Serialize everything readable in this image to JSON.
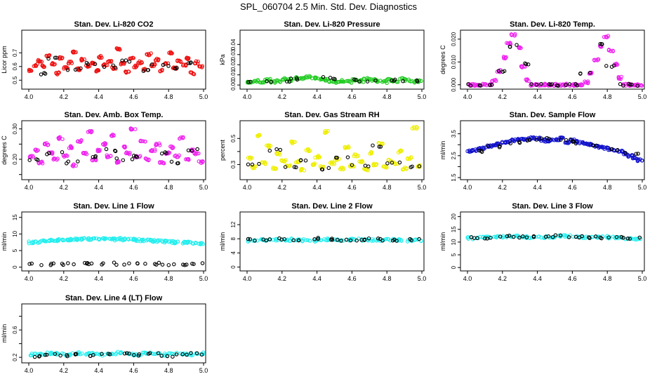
{
  "page_title": "SPL_060704  2.5 Min. Std. Dev. Diagnostics",
  "colors": {
    "red": "#ee1111",
    "green": "#22cc22",
    "magenta": "#ee22ee",
    "yellow": "#eeee00",
    "blue": "#1111cc",
    "cyan": "#22eeee",
    "black": "#000000"
  },
  "chart_data": [
    {
      "type": "scatter",
      "title": "Stan. Dev. Li-820 CO2",
      "ylabel": "Licor ppm",
      "xlim": [
        4.0,
        5.0
      ],
      "ylim": [
        0.45,
        0.85
      ],
      "xticks": [
        4.0,
        4.2,
        4.4,
        4.6,
        4.8,
        5.0
      ],
      "xtick_labels": [
        "4.0",
        "4.2",
        "4.4",
        "4.6",
        "4.8",
        "5.0"
      ],
      "yticks": [
        0.5,
        0.6,
        0.7
      ],
      "ytick_labels": [
        "0.5",
        "0.6",
        "0.7"
      ],
      "series": [
        {
          "color": "#ee1111",
          "values": [
            0.57,
            0.61,
            0.64,
            0.6,
            0.68,
            0.62,
            0.55,
            0.66,
            0.59,
            0.63,
            0.71,
            0.58,
            0.65,
            0.6,
            0.62,
            0.57,
            0.67,
            0.61,
            0.64,
            0.59,
            0.73,
            0.62,
            0.56,
            0.66,
            0.6,
            0.63,
            0.58,
            0.69,
            0.61,
            0.65,
            0.57,
            0.62,
            0.7,
            0.59,
            0.64,
            0.61,
            0.66,
            0.55,
            0.63,
            0.6
          ]
        },
        {
          "color": "#000000",
          "values": [
            0.55,
            0.66,
            0.58,
            0.62,
            0.6,
            0.64,
            0.57,
            0.61,
            0.59,
            0.63
          ]
        }
      ]
    },
    {
      "type": "scatter",
      "title": "Stan. Dev. Li-820 Pressure",
      "ylabel": "kPa",
      "xlim": [
        4.0,
        5.0
      ],
      "ylim": [
        -0.002,
        0.052
      ],
      "xticks": [
        4.0,
        4.2,
        4.4,
        4.6,
        4.8,
        5.0
      ],
      "xtick_labels": [
        "4.0",
        "4.2",
        "4.4",
        "4.6",
        "4.8",
        "5.0"
      ],
      "yticks": [
        0.0,
        0.01,
        0.02,
        0.03,
        0.04
      ],
      "ytick_labels": [
        "0.00",
        "0.01",
        "0.02",
        "0.03",
        "0.04"
      ],
      "series": [
        {
          "color": "#22cc22",
          "values": [
            0.003,
            0.004,
            0.002,
            0.005,
            0.003,
            0.004,
            0.006,
            0.005,
            0.007,
            0.006,
            0.008,
            0.007,
            0.006,
            0.005,
            0.004,
            0.003,
            0.004,
            0.003,
            0.005,
            0.004,
            0.006,
            0.005,
            0.004,
            0.003,
            0.005,
            0.004,
            0.006,
            0.005,
            0.003,
            0.004
          ]
        },
        {
          "color": "#000000",
          "values": [
            0.003,
            0.004,
            0.006,
            0.007,
            0.005,
            0.004,
            0.005,
            0.004
          ]
        }
      ]
    },
    {
      "type": "scatter",
      "title": "Stan. Dev. Li-820 Temp.",
      "ylabel": "degrees C",
      "xlim": [
        4.0,
        5.0
      ],
      "ylim": [
        -0.001,
        0.023
      ],
      "xticks": [
        4.0,
        4.2,
        4.4,
        4.6,
        4.8,
        5.0
      ],
      "xtick_labels": [
        "4.0",
        "4.2",
        "4.4",
        "4.6",
        "4.8",
        "5.0"
      ],
      "yticks": [
        0.0,
        0.01,
        0.02
      ],
      "ytick_labels": [
        "0.000",
        "0.010",
        "0.020"
      ],
      "series": [
        {
          "color": "#ee22ee",
          "values": [
            0.0,
            0.0,
            0.0,
            0.0,
            0.0,
            0.002,
            0.006,
            0.012,
            0.018,
            0.022,
            0.016,
            0.008,
            0.002,
            0.0,
            0.0,
            0.0,
            0.0,
            0.0,
            0.0,
            0.0,
            0.0,
            0.0,
            0.0,
            0.0,
            0.001,
            0.005,
            0.011,
            0.017,
            0.021,
            0.015,
            0.009,
            0.003,
            0.0,
            0.0,
            0.0,
            0.0
          ]
        },
        {
          "color": "#000000",
          "values": [
            0.0,
            0.0,
            0.006,
            0.017,
            0.009,
            0.0,
            0.0,
            0.0,
            0.0,
            0.005,
            0.018,
            0.008,
            0.0,
            0.0
          ]
        }
      ]
    },
    {
      "type": "scatter",
      "title": "Stan. Dev. Amb. Box Temp.",
      "ylabel": "degrees C",
      "xlim": [
        4.0,
        5.0
      ],
      "ylim": [
        0.14,
        0.32
      ],
      "xticks": [
        4.0,
        4.2,
        4.4,
        4.6,
        4.8,
        5.0
      ],
      "xtick_labels": [
        "4.0",
        "4.2",
        "4.4",
        "4.6",
        "4.8",
        "5.0"
      ],
      "yticks": [
        0.15,
        0.2,
        0.25,
        0.3
      ],
      "ytick_labels": [
        "",
        "0.20",
        "",
        "0.30"
      ],
      "series": [
        {
          "color": "#ee22ee",
          "values": [
            0.21,
            0.23,
            0.19,
            0.25,
            0.22,
            0.2,
            0.27,
            0.21,
            0.24,
            0.18,
            0.26,
            0.22,
            0.29,
            0.2,
            0.23,
            0.25,
            0.21,
            0.28,
            0.19,
            0.24,
            0.22,
            0.3,
            0.21,
            0.26,
            0.2,
            0.23,
            0.25,
            0.19,
            0.22,
            0.24,
            0.21,
            0.27,
            0.2,
            0.23,
            0.22,
            0.19
          ]
        },
        {
          "color": "#000000",
          "values": [
            0.2,
            0.22,
            0.19,
            0.21,
            0.23,
            0.2,
            0.21,
            0.22,
            0.19,
            0.23
          ]
        }
      ]
    },
    {
      "type": "scatter",
      "title": "Stan. Dev. Gas Stream RH",
      "ylabel": "percent",
      "xlim": [
        4.0,
        5.0
      ],
      "ylim": [
        0.2,
        0.62
      ],
      "xticks": [
        4.0,
        4.2,
        4.4,
        4.6,
        4.8,
        5.0
      ],
      "xtick_labels": [
        "4.0",
        "4.2",
        "4.4",
        "4.6",
        "4.8",
        "5.0"
      ],
      "yticks": [
        0.3,
        0.4,
        0.5
      ],
      "ytick_labels": [
        "0.3",
        "",
        "0.5"
      ],
      "series": [
        {
          "color": "#eeee00",
          "values": [
            0.35,
            0.28,
            0.52,
            0.31,
            0.44,
            0.27,
            0.38,
            0.33,
            0.29,
            0.47,
            0.32,
            0.26,
            0.41,
            0.3,
            0.36,
            0.28,
            0.55,
            0.31,
            0.34,
            0.27,
            0.43,
            0.29,
            0.37,
            0.32,
            0.26,
            0.39,
            0.3,
            0.46,
            0.28,
            0.33,
            0.31,
            0.4,
            0.27,
            0.35,
            0.58,
            0.29
          ]
        },
        {
          "color": "#000000",
          "values": [
            0.3,
            0.41,
            0.28,
            0.33,
            0.27,
            0.36,
            0.29,
            0.44,
            0.31,
            0.28
          ]
        }
      ]
    },
    {
      "type": "scatter",
      "title": "Stan. Dev. Sample Flow",
      "ylabel": "ml/min",
      "xlim": [
        4.0,
        5.0
      ],
      "ylim": [
        1.5,
        4.0
      ],
      "xticks": [
        4.0,
        4.2,
        4.4,
        4.6,
        4.8,
        5.0
      ],
      "xtick_labels": [
        "4.0",
        "4.2",
        "4.4",
        "4.6",
        "4.8",
        "5.0"
      ],
      "yticks": [
        1.5,
        2.0,
        2.5,
        3.0,
        3.5
      ],
      "ytick_labels": [
        "1.5",
        "",
        "2.5",
        "",
        "3.5"
      ],
      "series": [
        {
          "color": "#1111cc",
          "values": [
            2.7,
            2.75,
            2.8,
            2.85,
            2.95,
            3.0,
            3.05,
            3.1,
            3.15,
            3.2,
            3.22,
            3.25,
            3.25,
            3.3,
            3.28,
            3.2,
            3.15,
            3.2,
            3.25,
            3.3,
            3.1,
            3.2,
            3.15,
            3.1,
            3.05,
            3.0,
            2.95,
            2.9,
            2.85,
            2.8,
            2.75,
            2.7,
            2.6,
            2.5,
            2.4,
            2.3
          ]
        },
        {
          "color": "#000000",
          "values": [
            2.7,
            2.9,
            3.1,
            3.2,
            3.3,
            3.2,
            3.1,
            2.95,
            2.8,
            2.6
          ]
        }
      ]
    },
    {
      "type": "scatter",
      "title": "Stan. Dev. Line 1 Flow",
      "ylabel": "ml/min",
      "xlim": [
        4.0,
        5.0
      ],
      "ylim": [
        -0.5,
        16
      ],
      "xticks": [
        4.0,
        4.2,
        4.4,
        4.6,
        4.8,
        5.0
      ],
      "xtick_labels": [
        "4.0",
        "4.2",
        "4.4",
        "4.6",
        "4.8",
        "5.0"
      ],
      "yticks": [
        0,
        5,
        10,
        15
      ],
      "ytick_labels": [
        "0",
        "5",
        "10",
        "15"
      ],
      "series": [
        {
          "color": "#22eeee",
          "values": [
            7.5,
            7.6,
            7.8,
            8.0,
            8.1,
            8.2,
            8.3,
            8.3,
            8.4,
            8.5,
            8.4,
            8.5,
            8.6,
            8.5,
            8.4,
            8.5,
            8.4,
            8.3,
            8.2,
            8.1,
            8.0,
            7.9,
            7.8,
            7.7,
            7.6,
            7.5,
            7.4,
            7.5,
            7.3,
            7.2
          ]
        },
        {
          "color": "#000000",
          "values": [
            0.9,
            0.9,
            1.0,
            1.0,
            1.0,
            1.1,
            1.0,
            1.0,
            1.0,
            0.9,
            0.9,
            0.9
          ]
        }
      ]
    },
    {
      "type": "scatter",
      "title": "Stan. Dev. Line 2 Flow",
      "ylabel": "ml/min",
      "xlim": [
        4.0,
        5.0
      ],
      "ylim": [
        -0.5,
        15
      ],
      "xticks": [
        4.0,
        4.2,
        4.4,
        4.6,
        4.8,
        5.0
      ],
      "xtick_labels": [
        "4.0",
        "4.2",
        "4.4",
        "4.6",
        "4.8",
        "5.0"
      ],
      "yticks": [
        0,
        4,
        8,
        12
      ],
      "ytick_labels": [
        "0",
        "4",
        "8",
        "12"
      ],
      "series": [
        {
          "color": "#22eeee",
          "values": [
            7.5,
            7.6,
            7.7,
            7.8,
            7.7,
            7.8,
            7.6,
            7.5,
            7.7,
            7.8,
            7.6,
            7.7,
            7.8,
            7.7,
            7.6,
            7.7,
            7.8,
            7.6,
            7.5,
            7.6
          ]
        },
        {
          "color": "#000000",
          "values": [
            7.8,
            7.7,
            7.9,
            7.8,
            8.0,
            7.8,
            7.7,
            7.8,
            7.9,
            7.8,
            7.7,
            7.8
          ]
        }
      ]
    },
    {
      "type": "scatter",
      "title": "Stan. Dev. Line 3 Flow",
      "ylabel": "ml/min",
      "xlim": [
        4.0,
        5.0
      ],
      "ylim": [
        -0.5,
        21
      ],
      "xticks": [
        4.0,
        4.2,
        4.4,
        4.6,
        4.8,
        5.0
      ],
      "xtick_labels": [
        "4.0",
        "4.2",
        "4.4",
        "4.6",
        "4.8",
        "5.0"
      ],
      "yticks": [
        0,
        5,
        10,
        15,
        20
      ],
      "ytick_labels": [
        "0",
        "5",
        "10",
        "15",
        "20"
      ],
      "series": [
        {
          "color": "#22eeee",
          "values": [
            11.5,
            11.7,
            11.9,
            12.0,
            12.1,
            12.2,
            12.0,
            11.8,
            11.9,
            12.1,
            12.2,
            12.3,
            12.1,
            11.9,
            12.0,
            12.1,
            11.8,
            11.6,
            11.5,
            11.3
          ]
        },
        {
          "color": "#000000",
          "values": [
            11.6,
            11.8,
            12.3,
            12.0,
            11.9,
            12.2,
            12.3,
            12.1,
            11.9,
            11.8,
            11.6,
            11.5
          ]
        }
      ]
    },
    {
      "type": "scatter",
      "title": "Stan. Dev. Line 4 (LT) Flow",
      "ylabel": "ml/min",
      "xlim": [
        4.0,
        5.0
      ],
      "ylim": [
        0.15,
        0.95
      ],
      "xticks": [
        4.0,
        4.2,
        4.4,
        4.6,
        4.8,
        5.0
      ],
      "xtick_labels": [
        "4.0",
        "4.2",
        "4.4",
        "4.6",
        "4.8",
        "5.0"
      ],
      "yticks": [
        0.2,
        0.4,
        0.6,
        0.8
      ],
      "ytick_labels": [
        "0.2",
        "",
        "0.6",
        ""
      ],
      "series": [
        {
          "color": "#22eeee",
          "values": [
            0.24,
            0.25,
            0.26,
            0.25,
            0.24,
            0.26,
            0.25,
            0.26,
            0.24,
            0.25,
            0.27,
            0.25,
            0.24,
            0.26,
            0.25,
            0.24,
            0.26,
            0.25,
            0.24,
            0.26
          ]
        },
        {
          "color": "#000000",
          "values": [
            0.22,
            0.24,
            0.23,
            0.25,
            0.22,
            0.24,
            0.26,
            0.23,
            0.25,
            0.22,
            0.24,
            0.25
          ]
        }
      ]
    }
  ]
}
